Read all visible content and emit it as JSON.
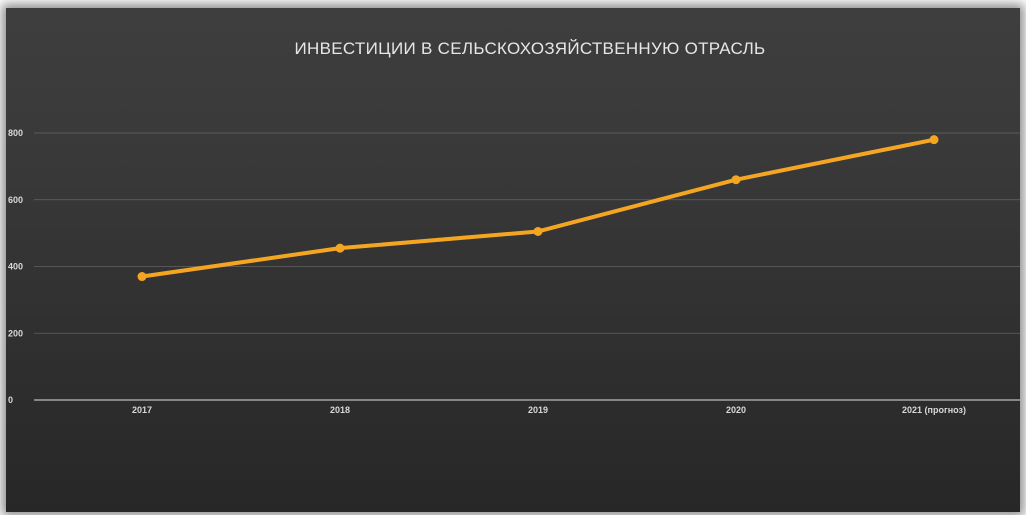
{
  "chart_data": {
    "type": "line",
    "title": "ИНВЕСТИЦИИ В СЕЛЬСКОХОЗЯЙСТВЕННУЮ ОТРАСЛЬ",
    "categories": [
      "2017",
      "2018",
      "2019",
      "2020",
      "2021 (прогноз)"
    ],
    "series": [
      {
        "values": [
          370,
          455,
          505,
          660,
          780
        ]
      }
    ],
    "ylim": [
      0,
      800
    ],
    "yticks": [
      0,
      200,
      400,
      600,
      800
    ],
    "grid": true,
    "legend": "none",
    "line_color": "#f4a623"
  }
}
